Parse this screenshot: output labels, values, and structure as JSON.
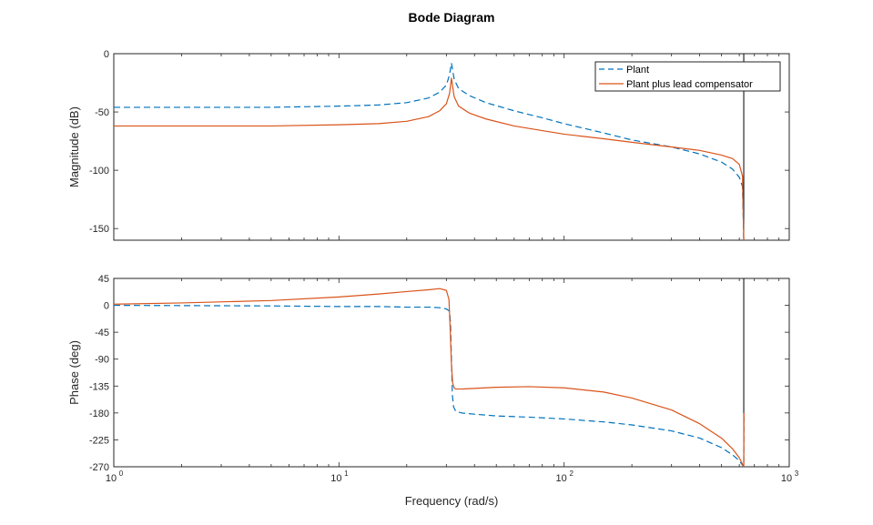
{
  "chart_data": {
    "type": "line",
    "title": "Bode Diagram",
    "xlabel": "Frequency (rad/s)",
    "xscale": "log",
    "xlim": [
      1,
      1000
    ],
    "x_ticks": [
      1,
      10,
      100,
      1000
    ],
    "x_tick_labels": [
      {
        "base": "10",
        "exp": "0"
      },
      {
        "base": "10",
        "exp": "1"
      },
      {
        "base": "10",
        "exp": "2"
      },
      {
        "base": "10",
        "exp": "3"
      }
    ],
    "legend": {
      "placement": "top-right",
      "entries": [
        "Plant",
        "Plant plus lead compensator"
      ]
    },
    "vertical_line_x": 628,
    "colors": {
      "plant": "#0072BD",
      "compensated": "#D95319",
      "axis": "#262626",
      "vline": "#000000"
    },
    "magnitude": {
      "ylabel": "Magnitude (dB)",
      "ylim": [
        -160,
        0
      ],
      "y_ticks": [
        0,
        -50,
        -100,
        -150
      ],
      "series": [
        {
          "name": "Plant",
          "style": "dashed",
          "x": [
            1,
            2,
            5,
            10,
            15,
            20,
            25,
            28,
            30,
            31,
            31.6,
            32.5,
            34,
            38,
            45,
            60,
            80,
            100,
            150,
            200,
            300,
            400,
            500,
            560,
            600,
            620,
            628
          ],
          "y": [
            -46,
            -46,
            -46,
            -45,
            -44,
            -42,
            -38,
            -33,
            -27,
            -18,
            -8,
            -22,
            -30,
            -36,
            -42,
            -49,
            -55,
            -60,
            -68,
            -74,
            -80,
            -86,
            -93,
            -99,
            -106,
            -114,
            -160
          ]
        },
        {
          "name": "Plant plus lead compensator",
          "style": "solid",
          "x": [
            1,
            2,
            5,
            10,
            15,
            20,
            25,
            28,
            30,
            31,
            31.6,
            32.5,
            34,
            38,
            45,
            60,
            80,
            100,
            150,
            200,
            300,
            400,
            500,
            560,
            600,
            620,
            628
          ],
          "y": [
            -62,
            -62,
            -62,
            -61,
            -60,
            -58,
            -54,
            -49,
            -43,
            -34,
            -21,
            -37,
            -45,
            -51,
            -56,
            -62,
            -66,
            -69,
            -73,
            -76,
            -80,
            -83,
            -87,
            -90,
            -95,
            -105,
            -160
          ]
        }
      ]
    },
    "phase": {
      "ylabel": "Phase (deg)",
      "ylim": [
        -270,
        45
      ],
      "y_ticks": [
        45,
        0,
        -45,
        -90,
        -135,
        -180,
        -225,
        -270
      ],
      "series": [
        {
          "name": "Plant",
          "style": "dashed",
          "x": [
            1,
            5,
            10,
            15,
            20,
            25,
            28,
            30,
            31,
            31.3,
            31.6,
            31.9,
            32.3,
            33,
            35,
            40,
            50,
            70,
            100,
            150,
            200,
            300,
            400,
            500,
            560,
            600,
            628,
            629
          ],
          "y": [
            0,
            -1,
            -2,
            -2,
            -3,
            -3,
            -4,
            -6,
            -10,
            -30,
            -90,
            -150,
            -170,
            -177,
            -180,
            -182,
            -185,
            -187,
            -190,
            -195,
            -200,
            -210,
            -222,
            -238,
            -250,
            -260,
            -270,
            -180
          ]
        },
        {
          "name": "Plant plus lead compensator",
          "style": "solid",
          "x": [
            1,
            2,
            5,
            10,
            15,
            20,
            25,
            28,
            30,
            30.8,
            31.2,
            31.6,
            32.0,
            32.5,
            33,
            35,
            40,
            50,
            70,
            100,
            150,
            200,
            300,
            400,
            500,
            560,
            600,
            628,
            629
          ],
          "y": [
            2,
            4,
            8,
            14,
            19,
            23,
            26,
            28,
            25,
            10,
            -40,
            -100,
            -130,
            -138,
            -140,
            -140,
            -139,
            -137,
            -136,
            -138,
            -145,
            -155,
            -175,
            -198,
            -222,
            -240,
            -255,
            -270,
            -180
          ]
        }
      ]
    }
  }
}
